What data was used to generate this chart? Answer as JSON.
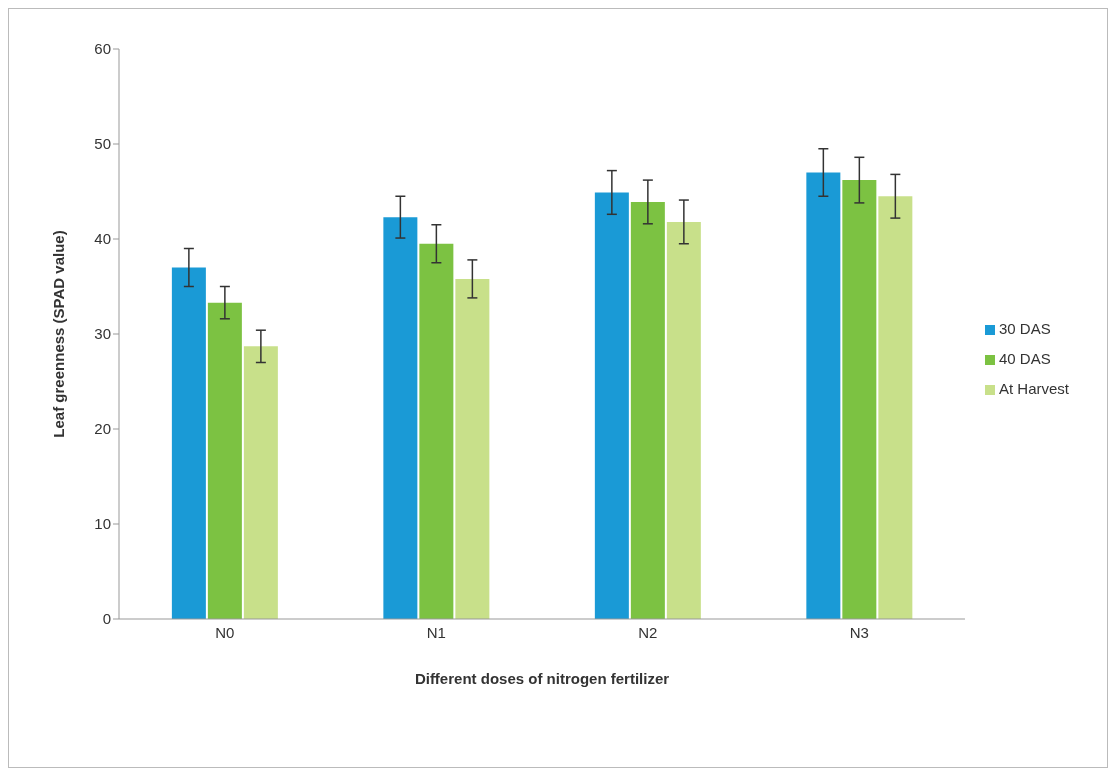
{
  "chart_data": {
    "type": "bar",
    "xlabel": "Different doses of nitrogen fertilizer",
    "ylabel": "Leaf greenness (SPAD value)",
    "categories": [
      "N0",
      "N1",
      "N2",
      "N3"
    ],
    "series": [
      {
        "name": "30 DAS",
        "color": "#1a9ad6",
        "values": [
          37,
          42.3,
          44.9,
          47
        ],
        "errors": [
          2,
          2.2,
          2.3,
          2.5
        ]
      },
      {
        "name": "40 DAS",
        "color": "#7cc242",
        "values": [
          33.3,
          39.5,
          43.9,
          46.2
        ],
        "errors": [
          1.7,
          2,
          2.3,
          2.4
        ]
      },
      {
        "name": "At Harvest",
        "color": "#c8e08a",
        "values": [
          28.7,
          35.8,
          41.8,
          44.5
        ],
        "errors": [
          1.7,
          2,
          2.3,
          2.3
        ]
      }
    ],
    "ylim": [
      0,
      60
    ],
    "yticks": [
      0,
      10,
      20,
      30,
      40,
      50,
      60
    ],
    "grid": false,
    "legend": "right"
  }
}
